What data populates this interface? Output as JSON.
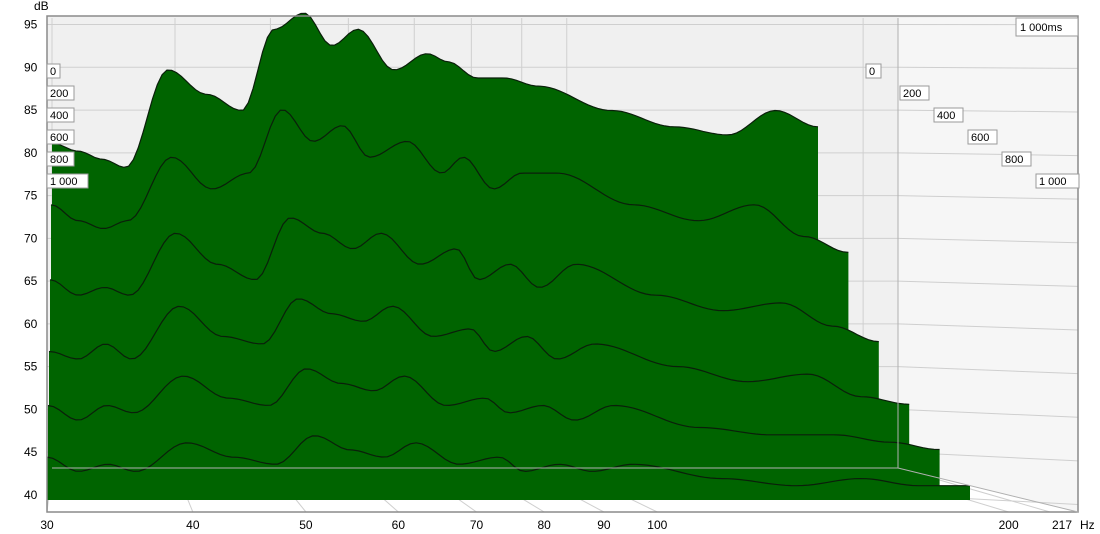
{
  "chart_data": {
    "type": "area",
    "subtype": "cumulative spectral decay (waterfall)",
    "y_unit_label": "dB",
    "x_unit_label": "Hz",
    "ylim": [
      38,
      96
    ],
    "xlim": [
      30,
      217
    ],
    "x_scale": "log",
    "y_ticks": [
      "95",
      "90",
      "85",
      "80",
      "75",
      "70",
      "65",
      "60",
      "55",
      "50",
      "45",
      "40"
    ],
    "x_ticks": [
      "30",
      "40",
      "50",
      "60",
      "70",
      "80",
      "90",
      "100",
      "200",
      "217"
    ],
    "time_max_label": "1 000ms",
    "time_labels_front": [
      "0",
      "200",
      "400",
      "600",
      "800",
      "1 000"
    ],
    "time_labels_side": [
      "0",
      "200",
      "400",
      "600",
      "800",
      "1 000"
    ],
    "time_slices_ms": [
      0,
      200,
      400,
      600,
      800,
      1000
    ],
    "grid": true,
    "legend": "none",
    "colors": {
      "fill": "#006400",
      "line": "#0a1f0a",
      "grid": "#cfcfcf",
      "background": "#f0f0f0"
    },
    "series": [
      {
        "time_ms": 0,
        "x": [
          30,
          32,
          34,
          36,
          40,
          44,
          48,
          52,
          56,
          60,
          64,
          70,
          76,
          80,
          86,
          92,
          100,
          120,
          140,
          160,
          180,
          200
        ],
        "y": [
          78,
          77,
          76,
          75,
          87,
          84,
          82,
          92,
          94,
          90,
          92,
          87,
          89,
          88,
          86,
          86,
          85,
          82,
          80,
          79,
          82,
          80
        ]
      },
      {
        "time_ms": 200,
        "x": [
          30,
          32,
          34,
          36,
          40,
          44,
          48,
          52,
          56,
          60,
          64,
          70,
          76,
          80,
          86,
          92,
          100,
          120,
          140,
          160,
          180,
          200
        ],
        "y": [
          72,
          70,
          69,
          70,
          78,
          74,
          76,
          84,
          80,
          82,
          78,
          80,
          76,
          78,
          74,
          76,
          76,
          72,
          70,
          72,
          68,
          66
        ]
      },
      {
        "time_ms": 400,
        "x": [
          30,
          32,
          34,
          36,
          40,
          44,
          48,
          52,
          56,
          60,
          64,
          70,
          76,
          80,
          86,
          92,
          100,
          120,
          140,
          160,
          180,
          200
        ],
        "y": [
          64,
          62,
          63,
          62,
          70,
          66,
          64,
          72,
          70,
          68,
          70,
          66,
          68,
          64,
          66,
          63,
          66,
          62,
          60,
          61,
          58,
          56
        ]
      },
      {
        "time_ms": 600,
        "x": [
          30,
          32,
          34,
          36,
          40,
          44,
          48,
          52,
          56,
          60,
          64,
          70,
          76,
          80,
          86,
          92,
          100,
          120,
          140,
          160,
          180,
          200
        ],
        "y": [
          56,
          55,
          57,
          55,
          62,
          58,
          57,
          63,
          61,
          60,
          62,
          58,
          59,
          56,
          58,
          55,
          57,
          54,
          52,
          53,
          50,
          49
        ]
      },
      {
        "time_ms": 800,
        "x": [
          30,
          32,
          34,
          36,
          40,
          44,
          48,
          52,
          56,
          60,
          64,
          70,
          76,
          80,
          86,
          92,
          100,
          120,
          140,
          160,
          180,
          200
        ],
        "y": [
          50,
          48,
          50,
          49,
          54,
          51,
          50,
          55,
          53,
          52,
          54,
          50,
          51,
          49,
          50,
          48,
          50,
          47,
          46,
          46,
          45,
          44
        ]
      },
      {
        "time_ms": 1000,
        "x": [
          30,
          32,
          34,
          36,
          40,
          44,
          48,
          52,
          56,
          60,
          64,
          70,
          76,
          80,
          86,
          92,
          100,
          120,
          140,
          160,
          180,
          200
        ],
        "y": [
          44,
          42,
          43,
          42,
          46,
          44,
          43,
          47,
          45,
          44,
          46,
          43,
          44,
          42,
          43,
          42,
          43,
          41,
          40,
          41,
          40,
          40
        ]
      }
    ]
  }
}
